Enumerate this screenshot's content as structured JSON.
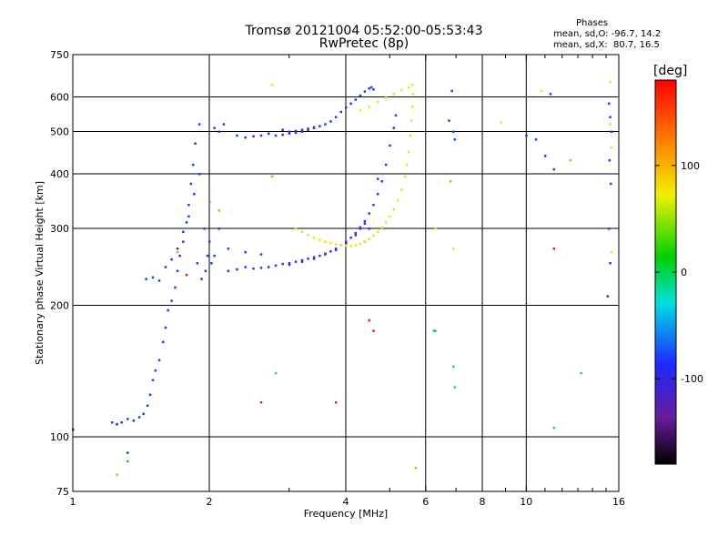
{
  "header": {
    "title": "Tromsø 20121004 05:52:00-05:53:43",
    "subtitle": "RwPretec (8p)"
  },
  "stats": {
    "heading": "Phases",
    "line_o": "mean, sd,O: -96.7, 14.2",
    "line_x": "mean, sd,X:  80.7, 16.5"
  },
  "colorbar": {
    "unit": "[deg]",
    "ticks": [
      {
        "label": "100",
        "value": 100
      },
      {
        "label": "0",
        "value": 0
      },
      {
        "label": "-100",
        "value": -100
      }
    ],
    "range": [
      -180,
      180
    ]
  },
  "chart_data": {
    "type": "scatter",
    "title": "Tromsø 20121004 05:52:00-05:53:43",
    "subtitle": "RwPretec (8p)",
    "xlabel": "Frequency [MHz]",
    "ylabel": "Stationary phase Virtual Height [km]",
    "xscale": "log",
    "yscale": "log",
    "xlim": [
      1,
      16
    ],
    "ylim": [
      75,
      750
    ],
    "grid": true,
    "xticks": [
      {
        "label": "1",
        "value": 1
      },
      {
        "label": "2",
        "value": 2
      },
      {
        "label": "4",
        "value": 4
      },
      {
        "label": "6",
        "value": 6
      },
      {
        "label": "8",
        "value": 8
      },
      {
        "label": "10",
        "value": 10
      },
      {
        "label": "16",
        "value": 16
      }
    ],
    "xgrid": [
      2,
      4,
      6,
      8,
      10
    ],
    "yticks": [
      {
        "label": "75",
        "value": 75
      },
      {
        "label": "100",
        "value": 100
      },
      {
        "label": "200",
        "value": 200
      },
      {
        "label": "300",
        "value": 300
      },
      {
        "label": "400",
        "value": 400
      },
      {
        "label": "500",
        "value": 500
      },
      {
        "label": "600",
        "value": 600
      },
      {
        "label": "750",
        "value": 750
      }
    ],
    "ygrid": [
      100,
      200,
      300,
      400,
      500,
      600
    ],
    "series": [
      {
        "color": "#1e3cf0",
        "points": [
          [
            1.0,
            104
          ],
          [
            1.22,
            108
          ],
          [
            1.25,
            107
          ],
          [
            1.28,
            108
          ],
          [
            1.32,
            110
          ],
          [
            1.36,
            109
          ],
          [
            1.4,
            111
          ],
          [
            1.43,
            113
          ],
          [
            1.46,
            118
          ],
          [
            1.48,
            125
          ],
          [
            1.5,
            135
          ],
          [
            1.52,
            142
          ],
          [
            1.55,
            150
          ],
          [
            1.58,
            165
          ],
          [
            1.6,
            178
          ],
          [
            1.62,
            195
          ],
          [
            1.65,
            205
          ],
          [
            1.68,
            220
          ],
          [
            1.7,
            240
          ],
          [
            1.72,
            260
          ],
          [
            1.75,
            280
          ],
          [
            1.78,
            310
          ],
          [
            1.8,
            340
          ],
          [
            1.82,
            380
          ],
          [
            1.84,
            420
          ],
          [
            1.86,
            470
          ],
          [
            1.9,
            520
          ],
          [
            1.95,
            300
          ],
          [
            1.98,
            260
          ],
          [
            2.0,
            280
          ],
          [
            1.45,
            230
          ],
          [
            1.5,
            232
          ],
          [
            1.55,
            228
          ],
          [
            1.6,
            245
          ],
          [
            1.65,
            255
          ],
          [
            1.7,
            270
          ],
          [
            1.75,
            295
          ],
          [
            1.8,
            320
          ],
          [
            1.85,
            360
          ],
          [
            1.9,
            400
          ],
          [
            1.88,
            250
          ],
          [
            1.92,
            230
          ],
          [
            1.96,
            240
          ],
          [
            2.02,
            250
          ],
          [
            2.05,
            260
          ],
          [
            2.05,
            510
          ],
          [
            2.1,
            500
          ],
          [
            2.15,
            520
          ],
          [
            2.3,
            490
          ],
          [
            2.4,
            485
          ],
          [
            2.5,
            488
          ],
          [
            2.6,
            490
          ],
          [
            2.7,
            495
          ],
          [
            2.8,
            490
          ],
          [
            2.9,
            492
          ],
          [
            3.0,
            495
          ],
          [
            3.1,
            497
          ],
          [
            3.2,
            500
          ],
          [
            3.3,
            505
          ],
          [
            3.4,
            510
          ],
          [
            3.5,
            515
          ],
          [
            3.6,
            520
          ],
          [
            3.7,
            528
          ],
          [
            3.8,
            540
          ],
          [
            3.9,
            555
          ],
          [
            4.0,
            568
          ],
          [
            4.1,
            580
          ],
          [
            4.2,
            592
          ],
          [
            4.3,
            605
          ],
          [
            4.4,
            618
          ],
          [
            4.5,
            628
          ],
          [
            4.55,
            632
          ],
          [
            4.6,
            625
          ],
          [
            2.2,
            240
          ],
          [
            2.3,
            242
          ],
          [
            2.4,
            245
          ],
          [
            2.5,
            243
          ],
          [
            2.6,
            244
          ],
          [
            2.7,
            245
          ],
          [
            2.8,
            247
          ],
          [
            2.9,
            249
          ],
          [
            3.0,
            250
          ],
          [
            3.1,
            252
          ],
          [
            3.2,
            254
          ],
          [
            3.3,
            256
          ],
          [
            3.4,
            258
          ],
          [
            3.5,
            260
          ],
          [
            3.6,
            263
          ],
          [
            3.7,
            266
          ],
          [
            3.8,
            270
          ],
          [
            3.9,
            275
          ],
          [
            4.0,
            280
          ],
          [
            4.1,
            286
          ],
          [
            4.2,
            293
          ],
          [
            4.3,
            302
          ],
          [
            4.4,
            312
          ],
          [
            4.5,
            325
          ],
          [
            4.6,
            340
          ],
          [
            4.7,
            360
          ],
          [
            4.8,
            385
          ],
          [
            4.9,
            420
          ],
          [
            5.0,
            465
          ],
          [
            5.1,
            510
          ],
          [
            5.15,
            545
          ],
          [
            2.2,
            270
          ],
          [
            2.4,
            265
          ],
          [
            2.6,
            262
          ],
          [
            2.1,
            300
          ],
          [
            4.7,
            390
          ],
          [
            4.5,
            300
          ],
          [
            4.3,
            300
          ],
          [
            4.4,
            280
          ],
          [
            6.85,
            620
          ],
          [
            6.9,
            500
          ],
          [
            6.95,
            480
          ],
          [
            6.75,
            530
          ],
          [
            10.0,
            490
          ],
          [
            10.5,
            480
          ],
          [
            11.0,
            440
          ],
          [
            11.5,
            410
          ],
          [
            11.3,
            610
          ],
          [
            15.2,
            580
          ],
          [
            15.3,
            540
          ],
          [
            15.4,
            500
          ],
          [
            15.25,
            430
          ],
          [
            15.35,
            380
          ],
          [
            15.2,
            300
          ],
          [
            15.3,
            250
          ],
          [
            15.1,
            210
          ],
          [
            1.32,
            92
          ],
          [
            1.25,
            107
          ]
        ]
      },
      {
        "color": "#5a1fb4",
        "points": [
          [
            2.9,
            505
          ],
          [
            3.0,
            500
          ],
          [
            3.1,
            502
          ],
          [
            3.2,
            505
          ],
          [
            3.3,
            508
          ],
          [
            3.4,
            512
          ],
          [
            3.0,
            248
          ],
          [
            3.2,
            252
          ],
          [
            3.4,
            256
          ],
          [
            3.6,
            262
          ],
          [
            3.8,
            268
          ],
          [
            4.0,
            278
          ],
          [
            4.2,
            290
          ],
          [
            4.4,
            308
          ]
        ]
      },
      {
        "color": "#e6e61e",
        "points": [
          [
            3.1,
            300
          ],
          [
            3.2,
            295
          ],
          [
            3.3,
            290
          ],
          [
            3.4,
            286
          ],
          [
            3.5,
            283
          ],
          [
            3.6,
            280
          ],
          [
            3.7,
            278
          ],
          [
            3.8,
            276
          ],
          [
            3.9,
            275
          ],
          [
            4.0,
            274
          ],
          [
            4.1,
            274
          ],
          [
            4.2,
            275
          ],
          [
            4.3,
            277
          ],
          [
            4.4,
            280
          ],
          [
            4.5,
            284
          ],
          [
            4.6,
            289
          ],
          [
            4.7,
            295
          ],
          [
            4.8,
            302
          ],
          [
            4.9,
            310
          ],
          [
            5.0,
            320
          ],
          [
            5.1,
            332
          ],
          [
            5.2,
            348
          ],
          [
            5.3,
            368
          ],
          [
            5.4,
            395
          ],
          [
            5.45,
            420
          ],
          [
            5.5,
            450
          ],
          [
            5.55,
            490
          ],
          [
            5.58,
            530
          ],
          [
            5.6,
            570
          ],
          [
            5.62,
            610
          ],
          [
            5.6,
            640
          ],
          [
            4.3,
            560
          ],
          [
            4.5,
            570
          ],
          [
            4.7,
            585
          ],
          [
            4.9,
            598
          ],
          [
            5.1,
            610
          ],
          [
            5.3,
            622
          ],
          [
            5.5,
            632
          ],
          [
            2.75,
            640
          ],
          [
            10.8,
            620
          ],
          [
            15.3,
            650
          ],
          [
            15.3,
            520
          ],
          [
            15.4,
            460
          ],
          [
            15.4,
            265
          ],
          [
            6.9,
            270
          ],
          [
            8.8,
            525
          ],
          [
            6.3,
            300
          ]
        ]
      },
      {
        "color": "#f0a01e",
        "points": [
          [
            2.75,
            395
          ],
          [
            6.8,
            385
          ],
          [
            12.5,
            430
          ],
          [
            1.25,
            82
          ],
          [
            5.7,
            85
          ],
          [
            2.1,
            330
          ],
          [
            1.7,
            265
          ]
        ]
      },
      {
        "color": "#e61e1e",
        "points": [
          [
            1.78,
            235
          ],
          [
            3.8,
            120
          ],
          [
            4.5,
            185
          ],
          [
            2.6,
            120
          ],
          [
            11.5,
            270
          ],
          [
            4.6,
            175
          ]
        ]
      },
      {
        "color": "#1ec8c8",
        "points": [
          [
            6.3,
            175
          ],
          [
            6.9,
            145
          ],
          [
            6.95,
            130
          ],
          [
            11.5,
            105
          ],
          [
            13.2,
            140
          ],
          [
            2.8,
            140
          ]
        ]
      },
      {
        "color": "#1ec81e",
        "points": [
          [
            2.0,
            345
          ],
          [
            1.32,
            88
          ],
          [
            6.25,
            175
          ]
        ]
      }
    ]
  }
}
